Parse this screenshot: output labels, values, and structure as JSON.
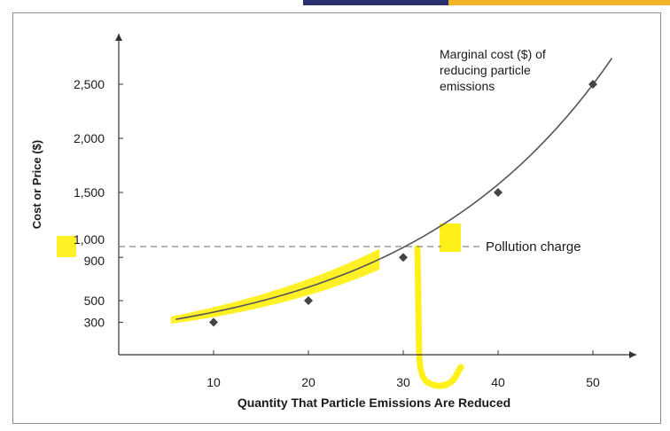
{
  "chart_data": {
    "type": "line",
    "title": "",
    "xlabel": "Quantity That Particle Emissions Are Reduced",
    "ylabel": "Cost or Price ($)",
    "x_ticks": [
      10,
      20,
      30,
      40,
      50
    ],
    "y_ticks": [
      300,
      500,
      900,
      1000,
      1500,
      2000,
      2500
    ],
    "y_tick_labels": [
      "300",
      "500",
      "900",
      "1,000",
      "1,500",
      "2,000",
      "2,500"
    ],
    "series": [
      {
        "name": "Marginal cost ($) of reducing particle emissions",
        "x": [
          10,
          20,
          30,
          40,
          50
        ],
        "y": [
          300,
          500,
          900,
          1500,
          2500
        ]
      }
    ],
    "curve_range": [
      6,
      52
    ],
    "reference_lines": [
      {
        "axis": "y",
        "value": 1000,
        "label": "Pollution charge",
        "style": "dashed"
      }
    ],
    "annotations": [
      {
        "text_lines": [
          "Marginal cost ($) of",
          "reducing particle",
          "emissions"
        ]
      }
    ],
    "colors": {
      "line": "#555555",
      "marker": "#444444",
      "highlight": "#ffee00",
      "dashed": "#888888"
    }
  }
}
